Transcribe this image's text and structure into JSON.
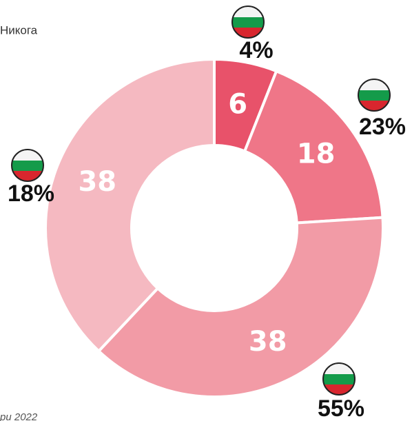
{
  "chart_data": {
    "type": "pie",
    "donut": true,
    "legend_text": "Никога",
    "source": "ри 2022",
    "values": [
      6,
      18,
      38,
      38
    ],
    "colors": [
      "#e8526a",
      "#ef7688",
      "#f29ba6",
      "#f5b9c1"
    ],
    "reference_values": [
      4,
      23,
      55,
      18
    ],
    "reference_value_labels": [
      "4%",
      "23%",
      "55%",
      "18%"
    ]
  }
}
